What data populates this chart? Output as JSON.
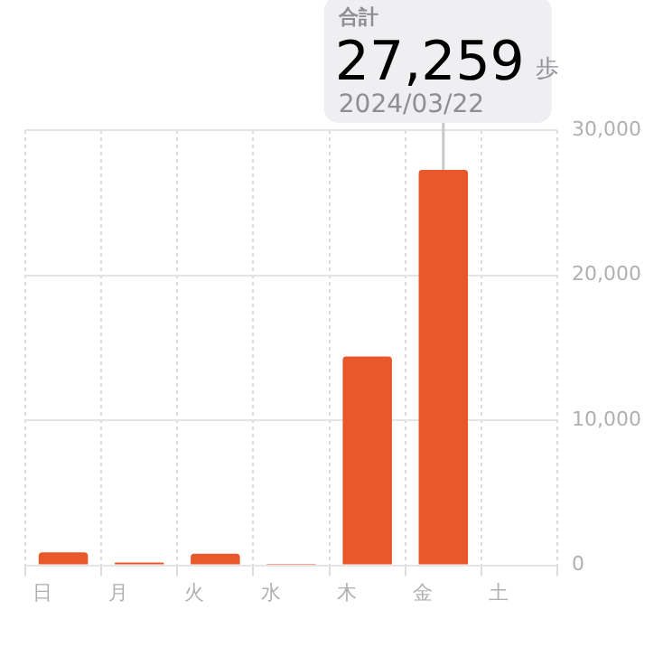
{
  "chart_data": {
    "type": "bar",
    "categories": [
      "日",
      "月",
      "火",
      "水",
      "木",
      "金",
      "土"
    ],
    "values": [
      900,
      200,
      800,
      100,
      14400,
      27259,
      null
    ],
    "color": "#e9582a",
    "ylim": [
      0,
      30000
    ],
    "yticks": [
      0,
      {
        "value": 10000,
        "label": "10,000"
      },
      {
        "value": 20000,
        "label": "20,000"
      },
      {
        "value": 30000,
        "label": "30,000"
      }
    ],
    "grid": true,
    "legend": false,
    "annotations": [
      "合計",
      {
        "text": "27,259",
        "x": "金",
        "y": 27259
      },
      "歩",
      "2024/03/22"
    ]
  }
}
